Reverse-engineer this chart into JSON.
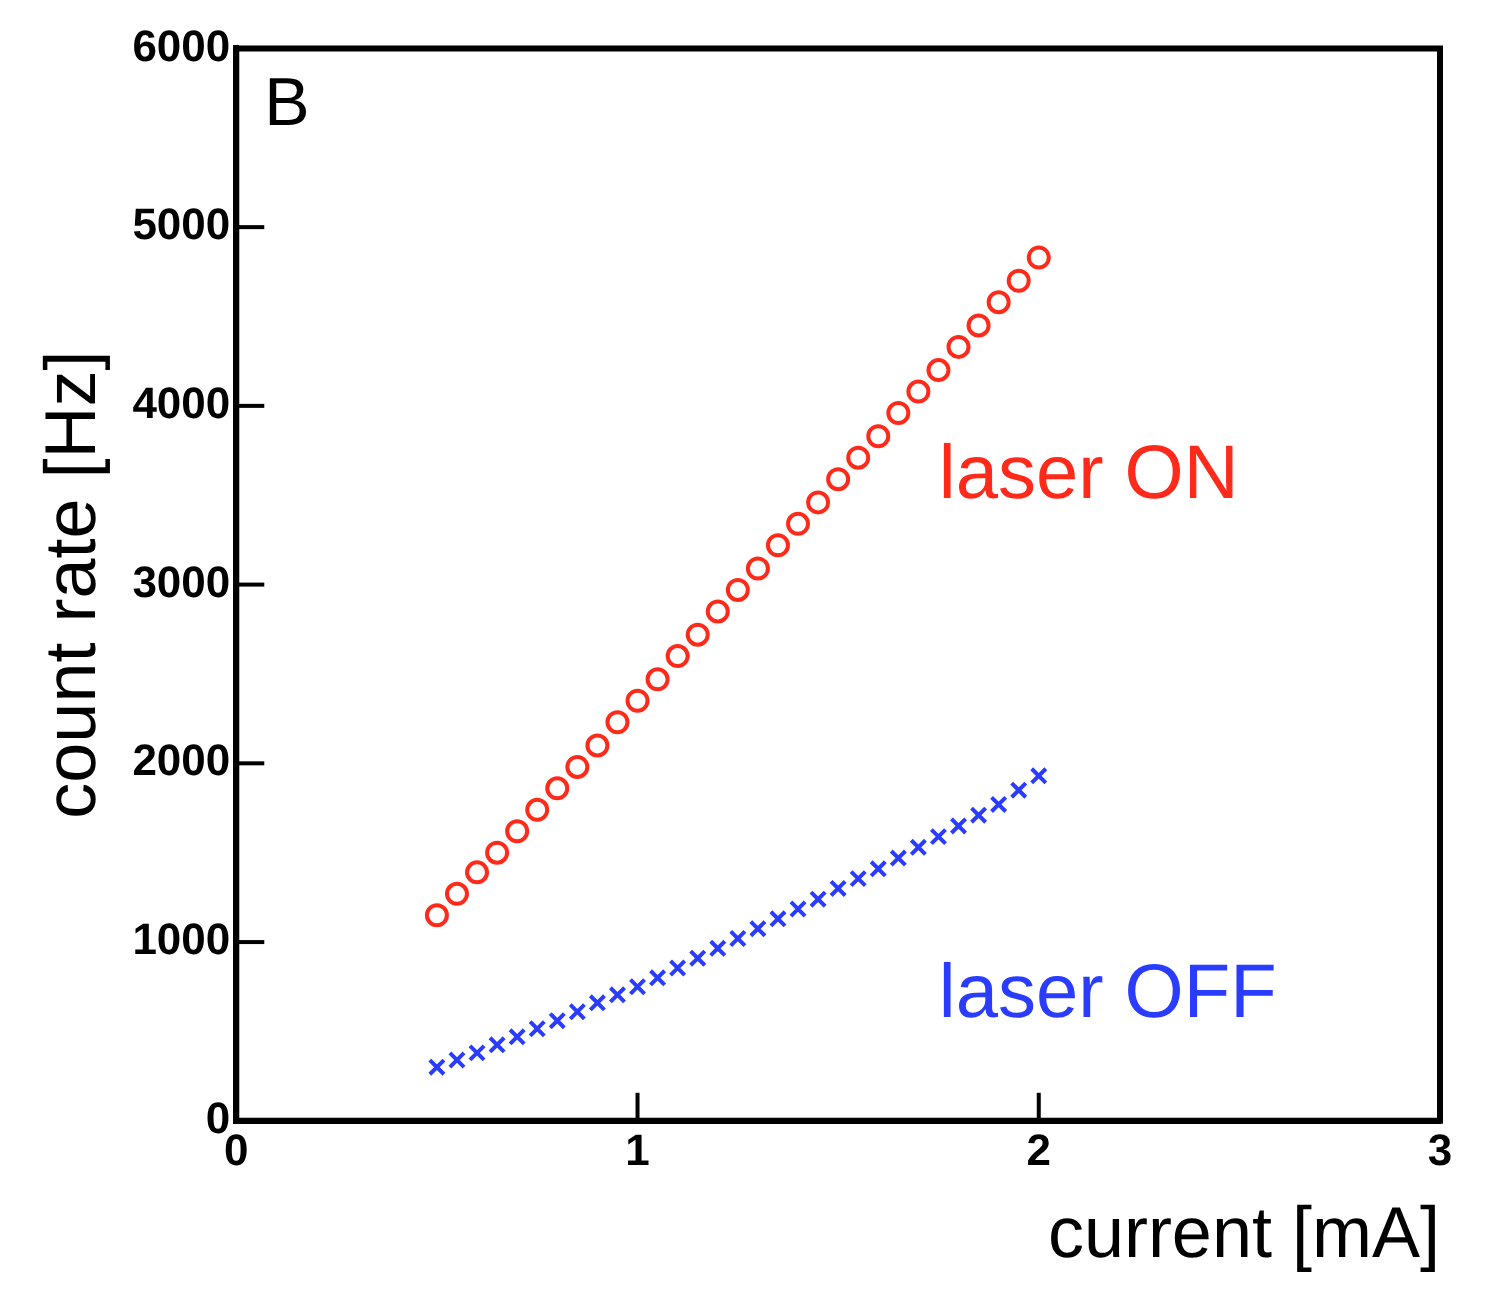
{
  "chart_data": {
    "type": "scatter",
    "xlabel": "current [mA]",
    "ylabel": "count rate [Hz]",
    "annotations": [
      "B"
    ],
    "xlim": [
      0,
      3
    ],
    "xticks": [
      0,
      1,
      2,
      3
    ],
    "ylim": [
      0,
      6000
    ],
    "yticks": [
      0,
      1000,
      2000,
      3000,
      4000,
      5000,
      6000
    ],
    "grid": false,
    "legend": false,
    "x": [
      0.5,
      0.55,
      0.6,
      0.65,
      0.7,
      0.75,
      0.8,
      0.85,
      0.9,
      0.95,
      1.0,
      1.05,
      1.1,
      1.15,
      1.2,
      1.25,
      1.3,
      1.35,
      1.4,
      1.45,
      1.5,
      1.55,
      1.6,
      1.65,
      1.7,
      1.75,
      1.8,
      1.85,
      1.9,
      1.95,
      2.0
    ],
    "series": [
      {
        "name": "laser ON",
        "color": "#ff2a1a",
        "marker": "circle",
        "values": [
          1150,
          1270,
          1390,
          1500,
          1620,
          1740,
          1860,
          1980,
          2100,
          2230,
          2350,
          2470,
          2600,
          2720,
          2850,
          2970,
          3090,
          3220,
          3340,
          3460,
          3590,
          3710,
          3830,
          3960,
          4080,
          4200,
          4330,
          4450,
          4580,
          4700,
          4830
        ]
      },
      {
        "name": "laser OFF",
        "color": "#2a3cff",
        "marker": "cross",
        "values": [
          300,
          340,
          380,
          425,
          470,
          515,
          560,
          610,
          660,
          705,
          750,
          800,
          855,
          910,
          965,
          1020,
          1075,
          1130,
          1185,
          1240,
          1300,
          1355,
          1410,
          1470,
          1530,
          1590,
          1650,
          1710,
          1770,
          1850,
          1930
        ]
      }
    ]
  }
}
